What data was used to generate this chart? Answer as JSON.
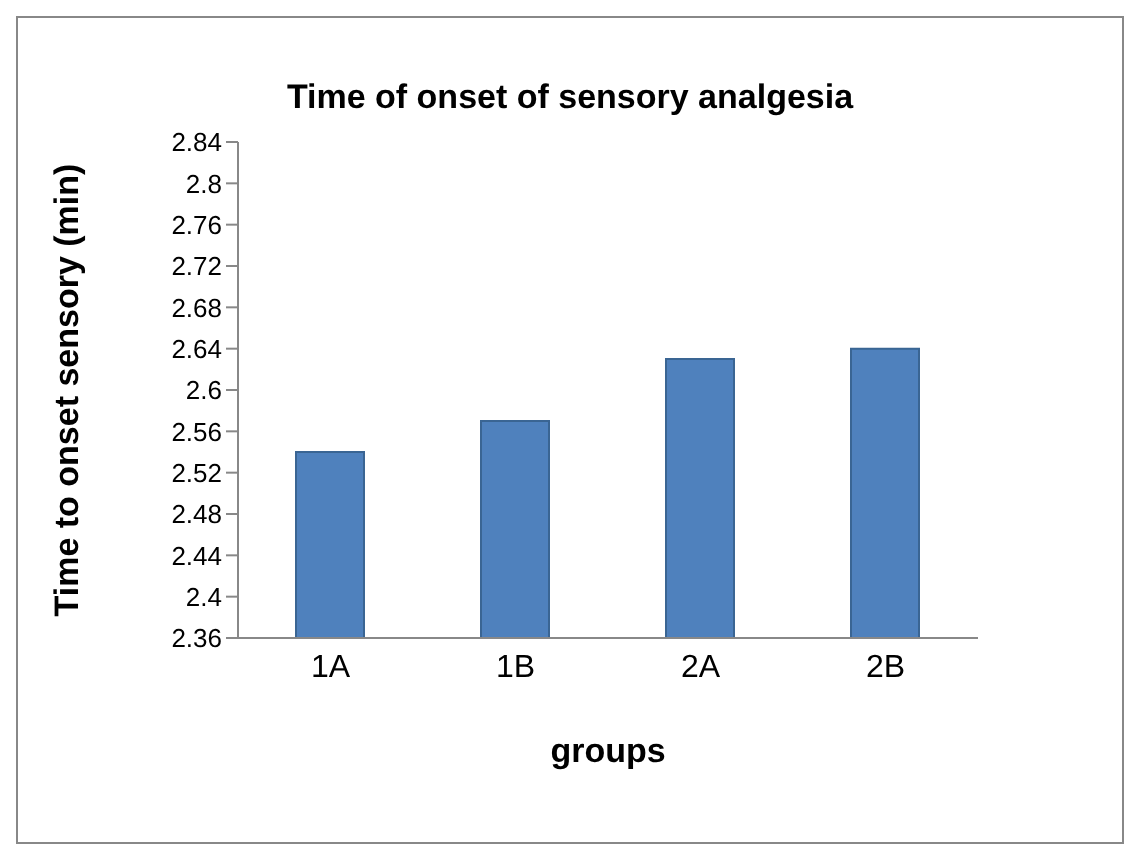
{
  "chart_data": {
    "type": "bar",
    "title": "Time of onset of sensory analgesia",
    "xlabel": "groups",
    "ylabel": "Time to onset sensory (min)",
    "categories": [
      "1A",
      "1B",
      "2A",
      "2B"
    ],
    "values": [
      2.54,
      2.57,
      2.63,
      2.64
    ],
    "color": "#4f81bd",
    "ylim": [
      2.36,
      2.84
    ],
    "yticks": [
      2.36,
      2.4,
      2.44,
      2.48,
      2.52,
      2.56,
      2.6,
      2.64,
      2.68,
      2.72,
      2.76,
      2.8,
      2.84
    ],
    "grid": false,
    "legend": false
  }
}
